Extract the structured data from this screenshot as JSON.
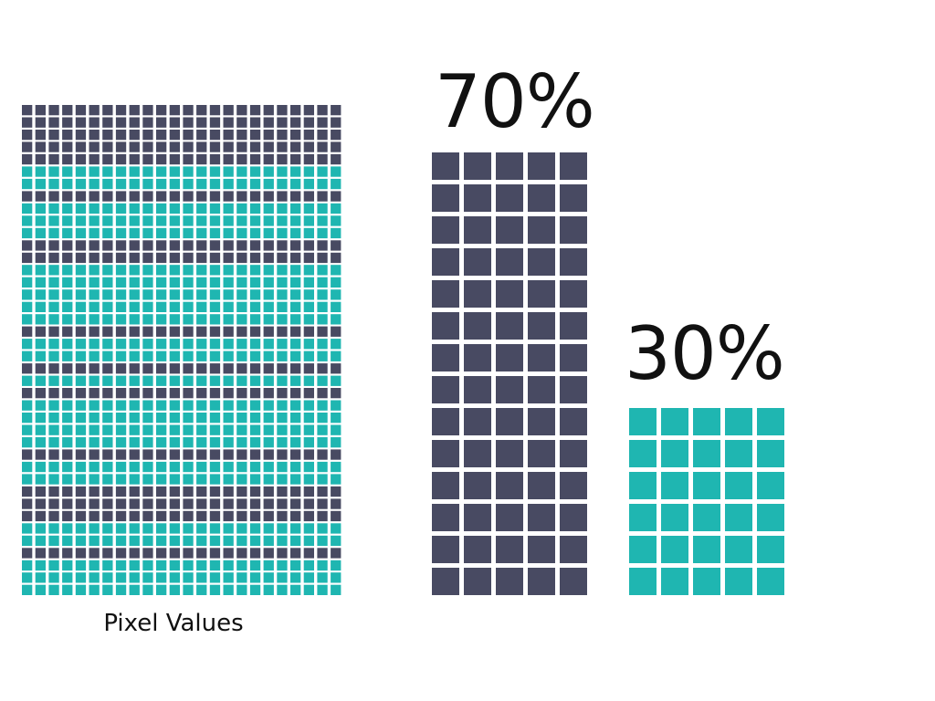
{
  "colors": {
    "dark": "#484a62",
    "teal": "#1fb6b1",
    "background": "#ffffff"
  },
  "chart_data": {
    "type": "waffle",
    "pixel_grid": {
      "label": "Pixel Values",
      "columns": 24,
      "rows": 40,
      "teal_rows": [
        5,
        6,
        8,
        9,
        10,
        13,
        14,
        15,
        16,
        17,
        19,
        20,
        22,
        24,
        25,
        26,
        27,
        29,
        30,
        34,
        35,
        37,
        38,
        39
      ]
    },
    "series": [
      {
        "value": 70,
        "label": "70%",
        "columns": 5,
        "rows": 14,
        "color": "#484a62"
      },
      {
        "value": 30,
        "label": "30%",
        "columns": 5,
        "rows": 6,
        "color": "#1fb6b1"
      }
    ]
  }
}
